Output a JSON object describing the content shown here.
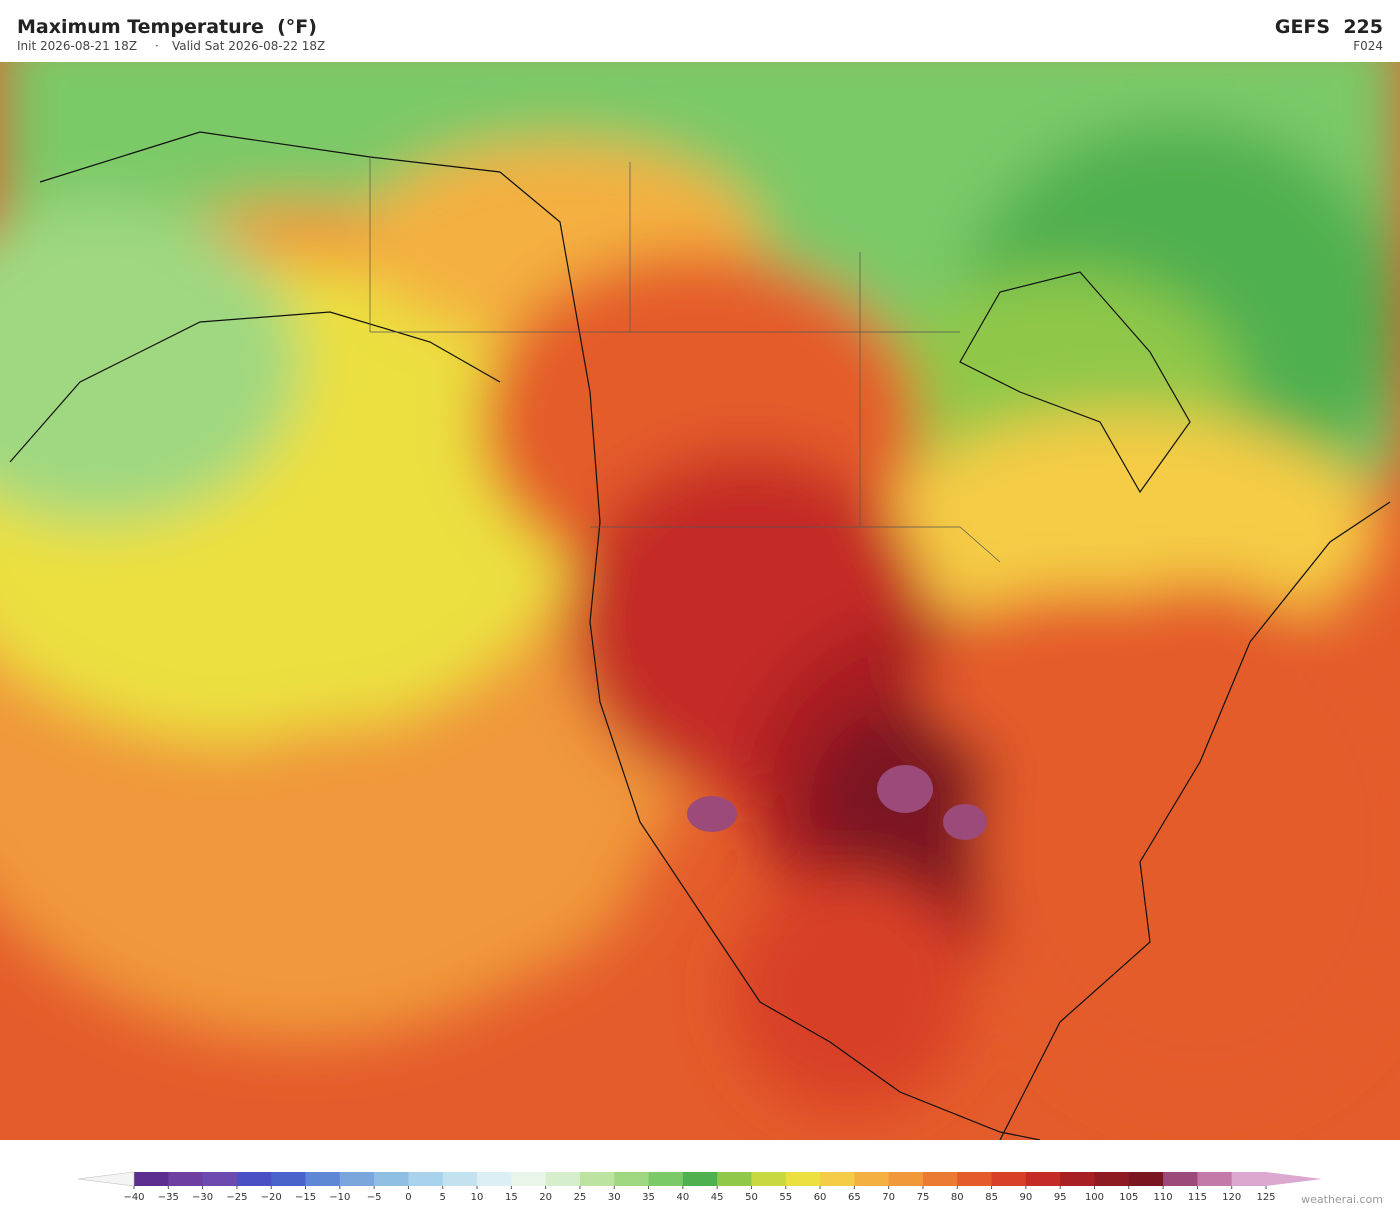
{
  "header": {
    "title": "Maximum Temperature  (°F)",
    "init": "Init 2026-08-21 18Z",
    "separator": "·",
    "valid": "Valid Sat 2026-08-22 18Z",
    "model": "GEFS  225",
    "forecast_hour": "F024"
  },
  "colorbar": {
    "ticks": [
      {
        "value": -40,
        "label": "−40"
      },
      {
        "value": -35,
        "label": "−35"
      },
      {
        "value": -30,
        "label": "−30"
      },
      {
        "value": -25,
        "label": "−25"
      },
      {
        "value": -20,
        "label": "−20"
      },
      {
        "value": -15,
        "label": "−15"
      },
      {
        "value": -10,
        "label": "−10"
      },
      {
        "value": -5,
        "label": "−5"
      },
      0,
      5,
      10,
      15,
      20,
      25,
      30,
      35,
      40,
      45,
      50,
      55,
      60,
      65,
      70,
      75,
      80,
      85,
      90,
      95,
      100,
      105,
      110,
      115,
      120,
      125
    ],
    "colors": [
      "#5b2d8e",
      "#6c3fa0",
      "#6d4ab0",
      "#4b4fc4",
      "#4a63cc",
      "#5e88d6",
      "#7aa6dd",
      "#90bfe4",
      "#a9d3ec",
      "#c2e2f0",
      "#dcf0f3",
      "#e8f5e8",
      "#d7eecc",
      "#bde3a0",
      "#9fd880",
      "#7cc968",
      "#4fb04f",
      "#8fc84a",
      "#c8d840",
      "#ebe040",
      "#f5cc45",
      "#f4b040",
      "#f0983a",
      "#eb7b33",
      "#e45c2b",
      "#d84028",
      "#c42a26",
      "#a81f24",
      "#8e1a22",
      "#7a1620",
      "#9b4a7a",
      "#c47aa8",
      "#dca8d0"
    ]
  },
  "footer": {
    "credit": "weatherai.com"
  }
}
